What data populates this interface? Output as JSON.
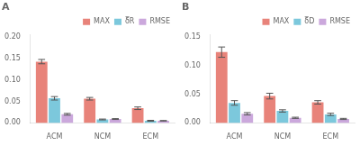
{
  "chart_data": [
    {
      "type": "bar",
      "title": "A",
      "categories": [
        "ACM",
        "NCM",
        "ECM"
      ],
      "series": [
        {
          "name": "MAX",
          "color": "#E8837A",
          "values": [
            0.142,
            0.056,
            0.034
          ],
          "errors": [
            0.005,
            0.003,
            0.003
          ]
        },
        {
          "name": "δ̅R",
          "color": "#7CC8DC",
          "values": [
            0.057,
            0.008,
            0.005
          ],
          "errors": [
            0.004,
            0.001,
            0.001
          ]
        },
        {
          "name": "RMSE",
          "color": "#CBA8DC",
          "values": [
            0.02,
            0.009,
            0.005
          ],
          "errors": [
            0.002,
            0.001,
            0.0005
          ]
        }
      ],
      "ylim": [
        0,
        0.205
      ],
      "yticks": [
        {
          "value": 0,
          "label": "0.00"
        },
        0.05,
        {
          "value": 0.1,
          "label": "0.10"
        },
        0.15,
        {
          "value": 0.2,
          "label": "0.20"
        }
      ],
      "grid": false,
      "legend": "upper right"
    },
    {
      "type": "bar",
      "title": "B",
      "categories": [
        "ACM",
        "NCM",
        "ECM"
      ],
      "series": [
        {
          "name": "MAX",
          "color": "#E8837A",
          "values": [
            0.124,
            0.047,
            0.036
          ],
          "errors": [
            0.009,
            0.005,
            0.003
          ]
        },
        {
          "name": "δ̅D",
          "color": "#7CC8DC",
          "values": [
            0.035,
            0.021,
            0.015
          ],
          "errors": [
            0.004,
            0.002,
            0.002
          ]
        },
        {
          "name": "RMSE",
          "color": "#CBA8DC",
          "values": [
            0.016,
            0.009,
            0.007
          ],
          "errors": [
            0.002,
            0.001,
            0.001
          ]
        }
      ],
      "ylim": [
        0,
        0.155
      ],
      "yticks": [
        {
          "value": 0,
          "label": "0.00"
        },
        0.05,
        {
          "value": 0.1,
          "label": "0.10"
        },
        0.15
      ],
      "grid": false,
      "legend": "upper right"
    }
  ]
}
